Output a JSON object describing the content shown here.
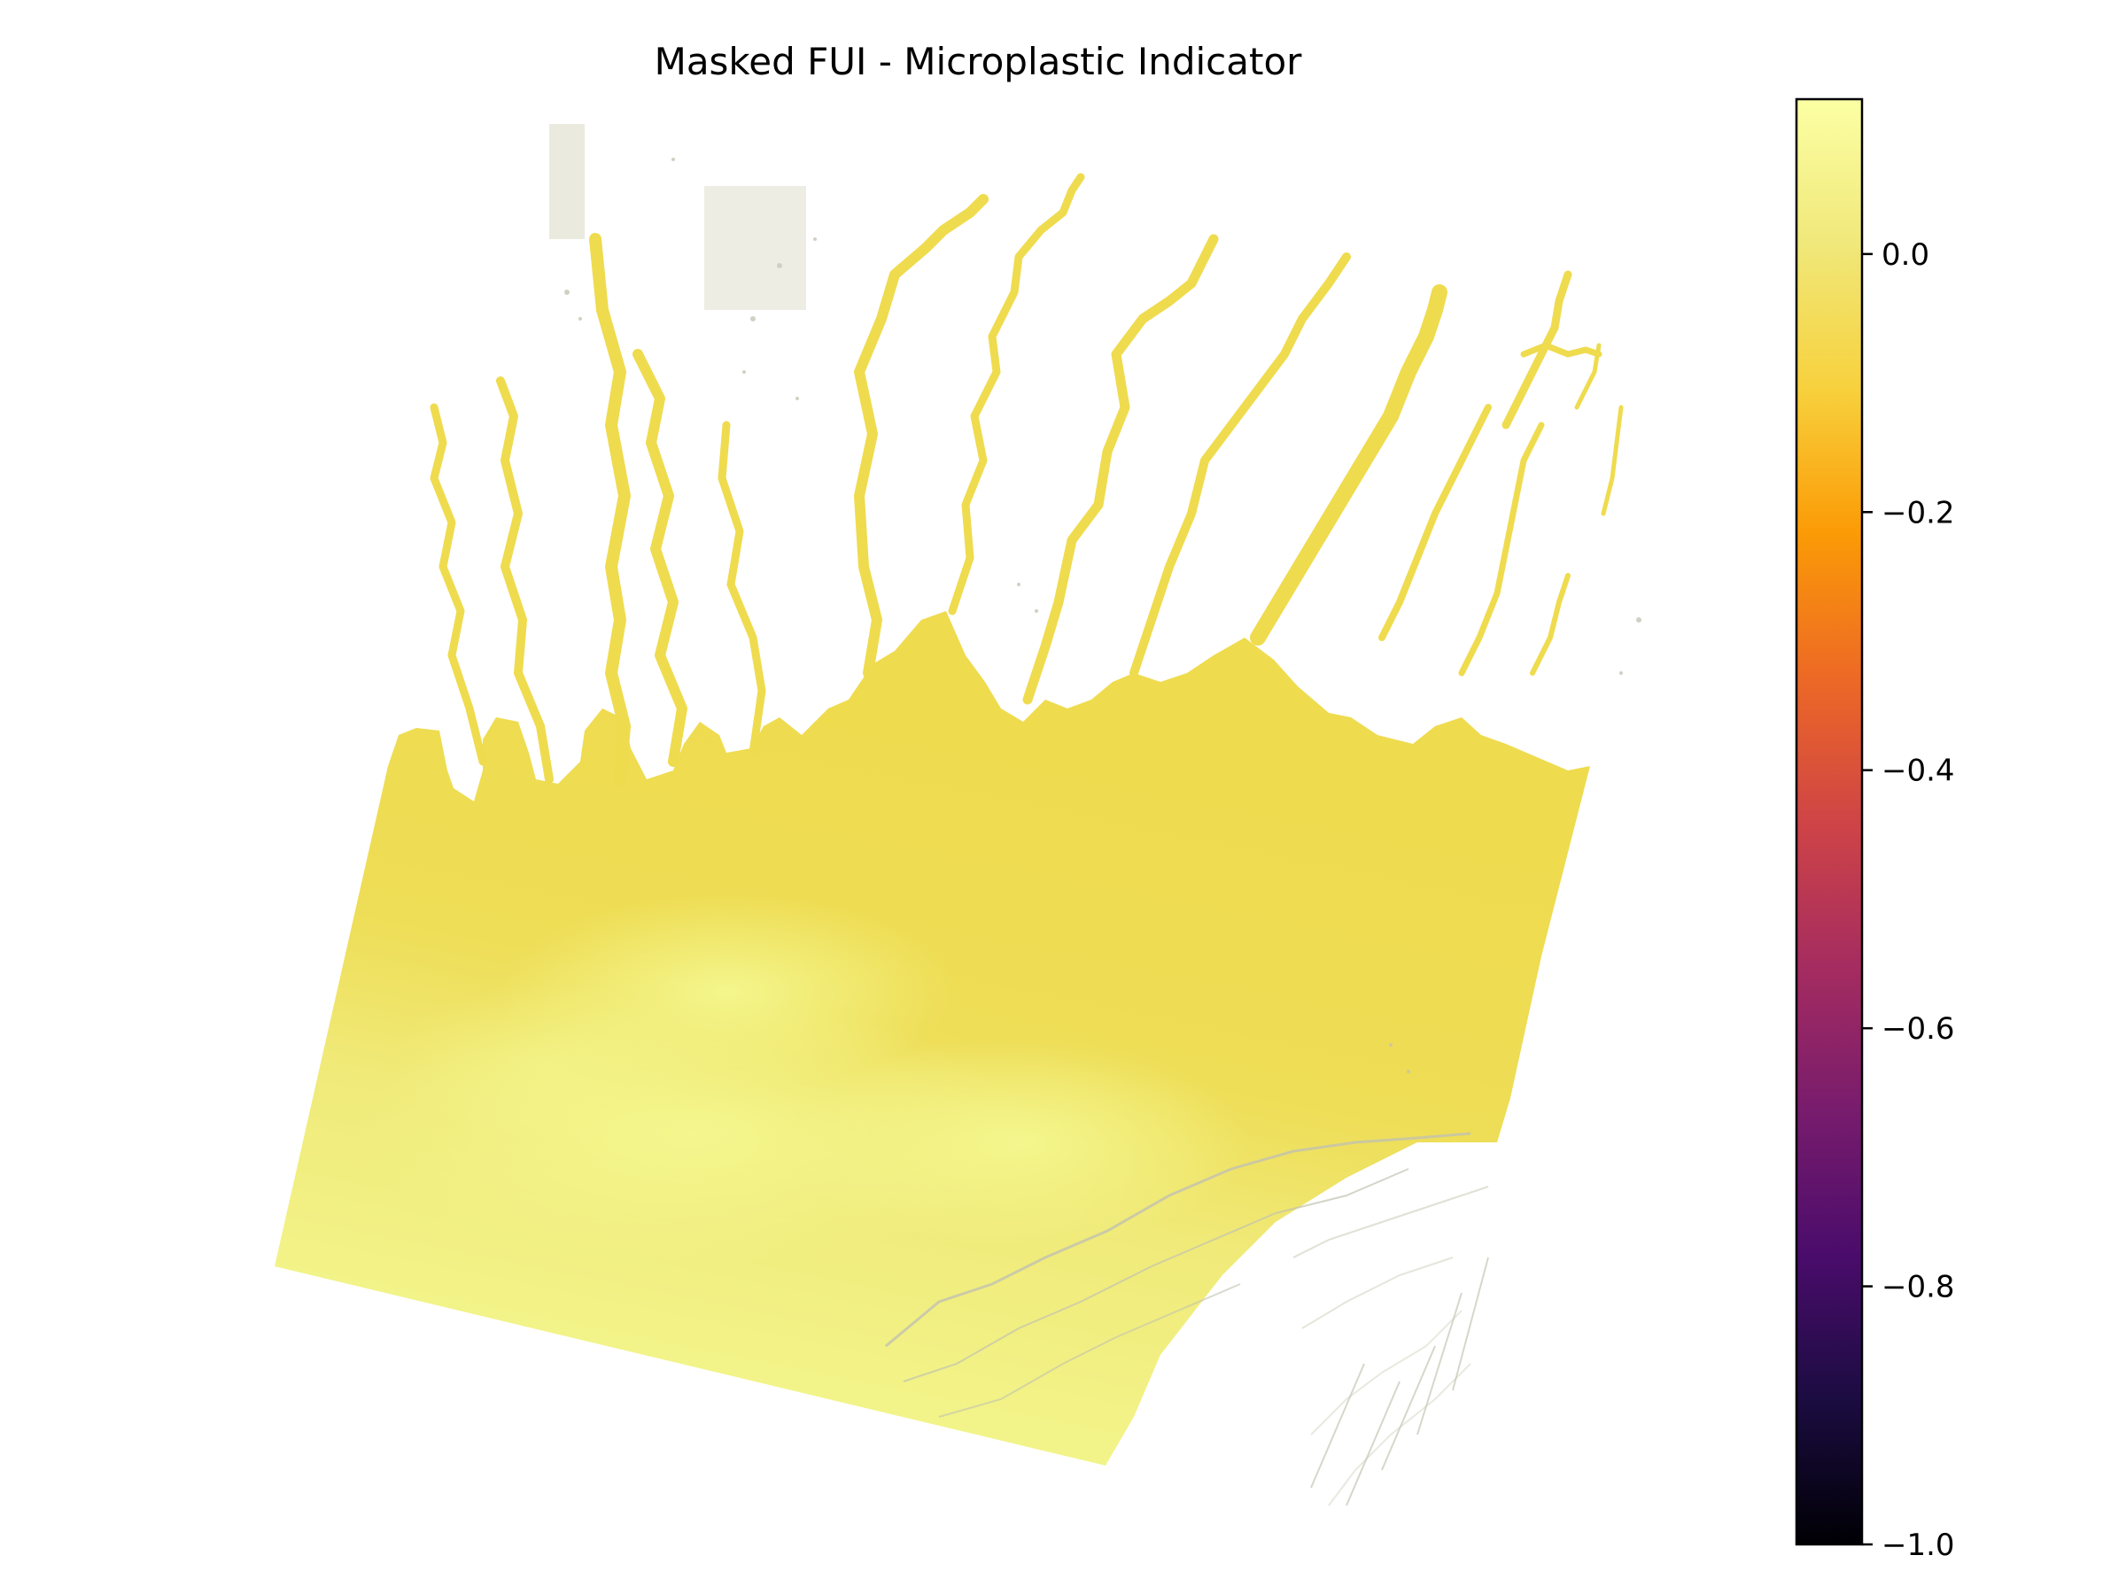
{
  "chart_data": {
    "type": "heatmap",
    "title": "Masked FUI - Microplastic Indicator",
    "xlabel": "",
    "ylabel": "",
    "axes_visible": false,
    "colormap": "inferno",
    "colorbar": {
      "position": "right",
      "vmin": -1.0,
      "vmax": 0.12,
      "ticks": [
        0.0,
        -0.2,
        -0.4,
        -0.6,
        -0.8,
        -1.0
      ],
      "tick_labels": [
        "0.0",
        "−0.2",
        "−0.4",
        "−0.6",
        "−0.8",
        "−1.0"
      ]
    },
    "value_range_shown": [
      0.02,
      0.11
    ],
    "masked_color": "#c0c0b0",
    "background_color": "#ffffff",
    "colors": {
      "river_water": "#efdb4e",
      "coastal_water": "#eedd56",
      "offshore_water": "#f3f68d"
    }
  }
}
